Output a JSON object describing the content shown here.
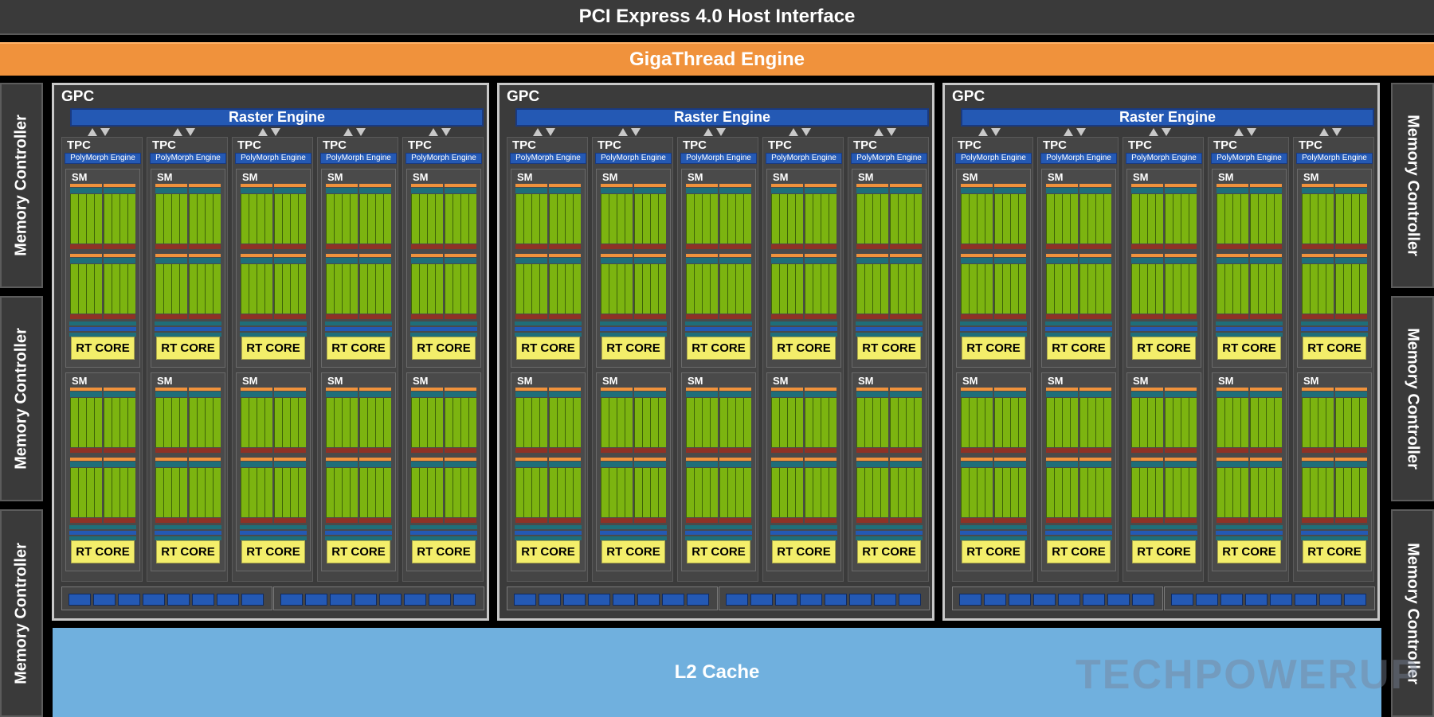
{
  "header": {
    "pcie_label": "PCI Express 4.0 Host Interface",
    "gigathread_label": "GigaThread Engine"
  },
  "memory_controller_label": "Memory Controller",
  "l2_label": "L2 Cache",
  "gpc": {
    "count": 3,
    "title": "GPC",
    "raster_label": "Raster Engine",
    "tpc_count": 5,
    "tpc_title": "TPC",
    "polymorph_label": "PolyMorph Engine",
    "sm_per_tpc": 2,
    "sm_title": "SM",
    "rt_core_label": "RT CORE",
    "bottom_blocks_per_bar": 8
  },
  "watermark": "TECHPOWERUP",
  "colors": {
    "background": "#000000",
    "gigathread": "#f0923c",
    "l2_cache": "#70b0de",
    "raster_blue": "#2459b4",
    "cuda_green": "#7cb410",
    "rt_core_yellow": "#f3ee6a",
    "teal": "#1f6e79",
    "red_brown": "#8e3226"
  }
}
